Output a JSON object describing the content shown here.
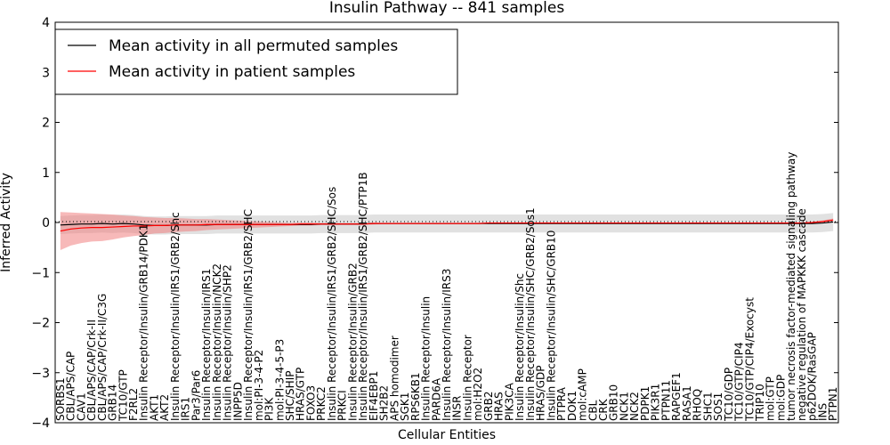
{
  "chart_data": {
    "type": "line",
    "title": "Insulin Pathway -- 841 samples",
    "xlabel": "Cellular Entities",
    "ylabel": "Inferred Activity",
    "ylim": [
      -4,
      4
    ],
    "yticks": [
      -4,
      -3,
      -2,
      -1,
      0,
      1,
      2,
      3,
      4
    ],
    "legend_position": "top-left",
    "categories": [
      "SORBS1",
      "CBL/APS/CAP",
      "CAV1",
      "CBL/APS/CAP/Crk-II",
      "CBL/APS/CAP/Crk-II/C3G",
      "GRB14",
      "TC10/GTP",
      "F2RL2",
      "Insulin Receptor/Insulin/GRB14/PDK1",
      "AKT1",
      "AKT2",
      "Insulin Receptor/Insulin/IRS1/GRB2/Shc",
      "IRS1",
      "Par3/Par6",
      "Insulin Receptor/Insulin/IRS1",
      "Insulin Receptor/Insulin/NCK2",
      "Insulin Receptor/Insulin/SHP2",
      "INPP5D",
      "Insulin Receptor/Insulin/IRS1/GRB2/SHC",
      "mol:PI-3-4-P2",
      "PI3K",
      "mol:PI-3-4-5-P3",
      "SHC/SHIP",
      "HRAS/GTP",
      "FOXO3",
      "PRKC2",
      "Insulin Receptor/Insulin/IRS1/GRB2/SHC/Sos",
      "PRKCI",
      "Insulin Receptor/Insulin/GRB2",
      "Insulin Receptor/Insulin/IRS1/GRB2/SHC/PTP1B",
      "EIF4EBP1",
      "SH2B2",
      "APS homodimer",
      "SGK1",
      "RPS6KB1",
      "Insulin Receptor/Insulin",
      "PARD6A",
      "Insulin Receptor/Insulin/IRS3",
      "INSR",
      "Insulin Receptor",
      "mol:H2O2",
      "GRB2",
      "HRAS",
      "PIK3CA",
      "Insulin Receptor/Insulin/Shc",
      "Insulin Receptor/Insulin/SHC/GRB2/Sos1",
      "HRAS/GDP",
      "Insulin Receptor/Insulin/SHC/GRB10",
      "PTPRA",
      "DOK1",
      "mol:cAMP",
      "CBL",
      "CRK",
      "GRB10",
      "NCK1",
      "NCK2",
      "PDPK1",
      "PIK3R1",
      "PTPN11",
      "RAPGEF1",
      "RASA1",
      "RHOQ",
      "SHC1",
      "SOS1",
      "TC10/GDP",
      "TC10/GTP/CIP4",
      "TC10/GTP/CIP4/Exocyst",
      "TRIP10",
      "mol:GTP",
      "mol:GDP",
      "tumor necrosis factor-mediated signaling pathway",
      "negative regulation of MAPKKK cascade",
      "p62DOK/RasGAP",
      "INS",
      "PTPN1"
    ],
    "series": [
      {
        "name": "Mean activity in all permuted samples",
        "color": "#000000",
        "style": "solid",
        "values": [
          -0.05,
          -0.04,
          -0.03,
          -0.03,
          -0.02,
          -0.03,
          -0.02,
          -0.03,
          -0.05,
          -0.06,
          -0.06,
          -0.05,
          -0.05,
          -0.05,
          -0.05,
          -0.04,
          -0.04,
          -0.04,
          -0.04,
          -0.04,
          -0.04,
          -0.04,
          -0.04,
          -0.04,
          -0.04,
          -0.03,
          -0.03,
          -0.03,
          -0.03,
          -0.03,
          -0.02,
          -0.02,
          -0.02,
          -0.02,
          -0.02,
          -0.02,
          -0.02,
          -0.02,
          -0.02,
          -0.02,
          -0.02,
          -0.02,
          -0.02,
          -0.02,
          -0.02,
          -0.02,
          -0.02,
          -0.02,
          -0.02,
          -0.02,
          -0.02,
          -0.02,
          -0.02,
          -0.02,
          -0.02,
          -0.02,
          -0.02,
          -0.02,
          -0.02,
          -0.02,
          -0.02,
          -0.02,
          -0.02,
          -0.02,
          -0.02,
          -0.02,
          -0.02,
          -0.02,
          -0.02,
          -0.02,
          -0.02,
          -0.02,
          -0.02,
          -0.01,
          0.01
        ],
        "band": {
          "lower": -0.18,
          "upper": 0.18,
          "color": "#c8c8c8"
        }
      },
      {
        "name": "Mean activity in patient samples",
        "color": "#ff0000",
        "style": "solid",
        "values": [
          -0.17,
          -0.13,
          -0.11,
          -0.1,
          -0.1,
          -0.09,
          -0.08,
          -0.07,
          -0.07,
          -0.06,
          -0.06,
          -0.05,
          -0.05,
          -0.05,
          -0.04,
          -0.04,
          -0.04,
          -0.04,
          -0.04,
          -0.04,
          -0.04,
          -0.04,
          -0.04,
          -0.03,
          -0.03,
          -0.03,
          -0.03,
          -0.03,
          -0.03,
          -0.03,
          -0.02,
          -0.02,
          -0.02,
          -0.02,
          -0.02,
          -0.02,
          -0.02,
          -0.02,
          -0.02,
          -0.02,
          -0.02,
          -0.01,
          -0.01,
          -0.01,
          -0.01,
          -0.01,
          -0.01,
          -0.01,
          -0.01,
          -0.01,
          -0.01,
          -0.01,
          -0.01,
          -0.01,
          -0.01,
          -0.01,
          -0.01,
          -0.01,
          -0.01,
          -0.01,
          -0.01,
          -0.01,
          -0.01,
          -0.01,
          -0.01,
          -0.01,
          -0.01,
          -0.01,
          -0.01,
          -0.01,
          -0.01,
          -0.01,
          0.0,
          0.02,
          0.05
        ],
        "band": {
          "lower_dev": [
            0.38,
            0.33,
            0.3,
            0.28,
            0.27,
            0.25,
            0.22,
            0.2,
            0.18,
            0.16,
            0.15,
            0.14,
            0.13,
            0.12,
            0.11,
            0.1,
            0.09,
            0.08,
            0.07,
            0.06,
            0.05,
            0.04,
            0.03,
            0.03,
            0.03,
            0.02,
            0.02,
            0.02,
            0.02,
            0.02,
            0.02,
            0.01,
            0.01,
            0.01,
            0.01,
            0.01,
            0.01,
            0.01,
            0.01,
            0.01,
            0.01,
            0.01,
            0.01,
            0.01,
            0.01,
            0.01,
            0.01,
            0.01,
            0.01,
            0.01,
            0.01,
            0.01,
            0.01,
            0.01,
            0.01,
            0.01,
            0.01,
            0.01,
            0.01,
            0.01,
            0.01,
            0.01,
            0.01,
            0.01,
            0.01,
            0.01,
            0.01,
            0.01,
            0.01,
            0.01,
            0.01,
            0.01,
            0.01,
            0.02,
            0.03
          ],
          "color": "#f08080"
        }
      }
    ]
  }
}
